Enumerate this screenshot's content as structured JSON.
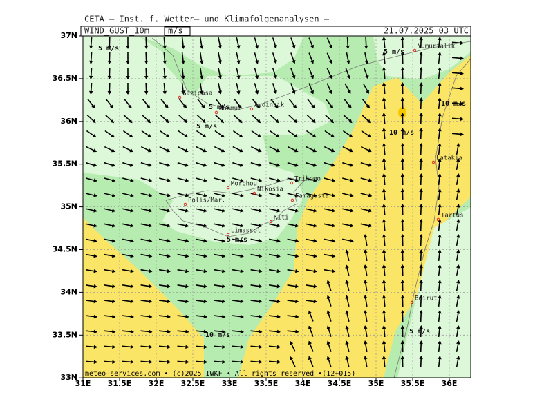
{
  "header": {
    "org": "CETA  –  Inst. f. Wetter–  und  Klimafolgenanalysen  –",
    "field": "WIND_GUST_10m",
    "unit": "m/s",
    "datetime": "21.07.2025 03 UTC"
  },
  "axes": {
    "x_labels": [
      "31E",
      "31.5E",
      "32E",
      "32.5E",
      "33E",
      "33.5E",
      "34E",
      "34.5E",
      "35E",
      "35.5E",
      "36E"
    ],
    "y_labels": [
      "37N",
      "36.5N",
      "36N",
      "35.5N",
      "35N",
      "34.5N",
      "34N",
      "33.5N",
      "33N"
    ]
  },
  "places": [
    "Gazipasa",
    "Anamur",
    "Aydincik",
    "Yumurtalik",
    "Latakia",
    "Tartus",
    "Trikomo",
    "Morphou",
    "Nikosia",
    "Famagusta",
    "Polis/Mar.",
    "Kiti",
    "Limassol",
    "Beirut"
  ],
  "contour_labels": [
    "5 m/s",
    "5 m/s",
    "5 m/s",
    "5 m/s",
    "10 m/s",
    "10 m/s",
    "5 m/s",
    "10 m/s",
    "5 m/s"
  ],
  "footer": "meteo–services.com • (c)2025 IWKF • All rights reserved •(12+015)"
}
